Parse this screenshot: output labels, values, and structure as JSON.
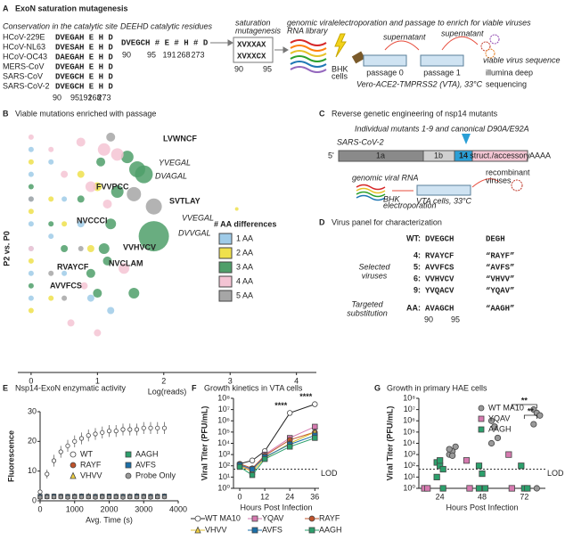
{
  "panel_a": {
    "label": "A",
    "title": "ExoN saturation mutagenesis",
    "conservation_title": "Conservation in the catalytic site",
    "strains": [
      {
        "name": "HCoV-229E",
        "sequence": "DVEGAH E H D"
      },
      {
        "name": "HCoV-NL63",
        "sequence": "DVESAH E H D"
      },
      {
        "name": "HCoV-OC43",
        "sequence": "DAEGAH E H D"
      },
      {
        "name": "MERS-CoV",
        "sequence": "DVEGAH E H D"
      },
      {
        "name": "SARS-CoV",
        "sequence": "DVEGCH E H D"
      },
      {
        "name": "SARS-CoV-2",
        "sequence": "DVEGCH E H D"
      }
    ],
    "positions": [
      "90",
      "95",
      "191",
      "268",
      "273"
    ],
    "catalytic_title": "DEEHD catalytic residues",
    "catalytic_sequence": "DVEGCH # E # H # D",
    "mutagenesis_title": [
      "saturation",
      "mutagenesis"
    ],
    "library": [
      "XVXXAX",
      "XVXXCX"
    ],
    "library_positions": [
      "90",
      "95"
    ],
    "rna_title": [
      "genomic viral",
      "RNA library"
    ],
    "passage_title": "electroporation and passage to enrich for viable viruses",
    "cells": [
      "BHK",
      "cells"
    ],
    "supernatant": "supernatant",
    "passages": [
      "passage 0",
      "passage 1"
    ],
    "vta": "Vero-ACE2-TMPRSS2 (VTA), 33°C",
    "viable": "viable virus sequence",
    "sequencing": [
      "illumina deep",
      "sequencing"
    ]
  },
  "panel_c": {
    "label": "C",
    "title": "Reverse genetic engineering of nsp14 mutants",
    "subtitle": "Individual mutants 1-9 and canonical D90A/E92A",
    "genome": "SARS-CoV-2",
    "five_prime": "5'",
    "segments": [
      "1a",
      "1b",
      "14",
      "struct./accessory"
    ],
    "poly_a": "AAAA",
    "rna": "genomic viral RNA",
    "electroporation": [
      "BHK",
      "electroporation"
    ],
    "cells": "VTA cells, 33°C",
    "recombinant": [
      "recombinant",
      "viruses"
    ]
  },
  "panel_d": {
    "label": "D",
    "title": "Virus panel for characterization",
    "rows": [
      [
        "WT:",
        "DVEGCH",
        "DEGH"
      ],
      [
        "4:",
        "RVAYCF",
        "“RAYF”"
      ],
      [
        "5:",
        "AVVFCS",
        "“AVFS”"
      ],
      [
        "6:",
        "VVHVCV",
        "“VHVV”"
      ],
      [
        "9:",
        "YVQACV",
        "“YQAV”"
      ],
      [
        "AA:",
        "AVAGCH",
        "“AAGH”"
      ]
    ],
    "selected": [
      "Selected",
      "viruses"
    ],
    "targeted": [
      "Targeted",
      "substitution"
    ],
    "positions": [
      "90",
      "95"
    ]
  },
  "chart_data": [
    {
      "type": "scatter",
      "panel_label": "B",
      "title": "Viable mutations enriched with passage",
      "x_label": "Log(reads)",
      "y_label": "P2 vs. P0",
      "xlim": [
        -0.2,
        4.3
      ],
      "xticks": [
        0,
        1,
        2,
        3,
        4
      ],
      "ylim": [
        0,
        10
      ],
      "legend_title": "# AA differences",
      "legend": "right",
      "series": [
        {
          "name": "1 AA",
          "color": "#9fcbe8",
          "x": [
            0,
            0,
            0,
            0,
            0,
            0,
            0,
            0.3,
            0.3,
            0.5,
            0.5,
            0.75,
            0.9,
            1.2
          ],
          "values": [
            9,
            8,
            7,
            6,
            5,
            4,
            3,
            8.5,
            5.5,
            7,
            4,
            6,
            3,
            2.5
          ],
          "sizes": [
            3,
            3,
            3,
            3,
            3,
            3,
            3,
            3,
            3,
            3,
            3,
            4,
            4,
            4
          ]
        },
        {
          "name": "2 AA",
          "color": "#efe04c",
          "x": [
            0,
            0,
            0,
            0,
            0.3,
            0.3,
            0.5,
            0.75,
            0.9,
            1.0,
            3.1
          ],
          "values": [
            8.5,
            6.5,
            4.5,
            2.5,
            7,
            3,
            6,
            8,
            5,
            7.5,
            6.6
          ],
          "sizes": [
            3,
            3,
            3,
            3,
            3,
            3,
            3,
            4,
            4,
            5,
            2
          ]
        },
        {
          "name": "3 AA",
          "color": "#4f9f6a",
          "x": [
            0,
            0,
            0.3,
            0.5,
            0.75,
            0.9,
            1.05,
            1.1,
            1.2,
            1.3,
            1.45,
            1.6,
            1.7,
            1.55,
            1.85,
            1.15,
            1.0
          ],
          "values": [
            7.5,
            3.5,
            6,
            5,
            7,
            4,
            8.5,
            5,
            6,
            7.3,
            8.7,
            8.2,
            8.0,
            3.2,
            5.5,
            4.5,
            3.2
          ],
          "sizes": [
            3,
            3,
            3,
            4,
            4,
            5,
            5,
            6,
            6,
            7,
            7,
            9,
            10,
            6,
            17,
            5,
            5
          ]
        },
        {
          "name": "4 AA",
          "color": "#f4c4d4",
          "x": [
            0,
            0,
            0.3,
            0.5,
            0.75,
            0.9,
            1.1,
            1.3,
            1.15,
            1.4,
            0.6,
            0.8,
            1.0
          ],
          "values": [
            9.5,
            5,
            9,
            8,
            9.3,
            7.5,
            9,
            8.8,
            6.8,
            4.2,
            2,
            3.5,
            1.6
          ],
          "sizes": [
            3,
            3,
            3,
            4,
            5,
            6,
            7,
            7,
            5,
            6,
            4,
            4,
            4
          ]
        },
        {
          "name": "5 AA",
          "color": "#a6a6a6",
          "x": [
            0,
            0.3,
            0.5,
            0.75,
            1.2,
            1.55,
            1.85
          ],
          "values": [
            7,
            4,
            3,
            5,
            9.5,
            7.2,
            6.7
          ],
          "sizes": [
            3,
            3,
            3,
            3,
            5,
            8,
            9
          ]
        }
      ],
      "annotations": [
        {
          "text": "LVWNCF",
          "style": "bold"
        },
        {
          "text": "YVEGAL",
          "style": "italic"
        },
        {
          "text": "DVAGAL",
          "style": "italic"
        },
        {
          "text": "FVVPCC",
          "style": "bold"
        },
        {
          "text": "SVTLAY",
          "style": "bold"
        },
        {
          "text": "NVCCCI",
          "style": "bold"
        },
        {
          "text": "VVEGAL",
          "style": "italic"
        },
        {
          "text": "DVVGAL",
          "style": "italic"
        },
        {
          "text": "VVHVCV",
          "style": "bold"
        },
        {
          "text": "NVCLAM",
          "style": "bold"
        },
        {
          "text": "RVAYCF",
          "style": "bold"
        },
        {
          "text": "AVVFCS",
          "style": "bold"
        }
      ]
    },
    {
      "type": "line",
      "panel_label": "E",
      "title": "Nsp14-ExoN enzymatic activity",
      "x_label": "Avg. Time (s)",
      "y_label": "Fluorescence",
      "xlim": [
        0,
        4000
      ],
      "xticks": [
        0,
        1000,
        2000,
        3000,
        4000
      ],
      "ylim": [
        0,
        30
      ],
      "yticks": [
        0,
        10,
        20,
        30
      ],
      "lines": false,
      "legend": "lower right",
      "x": [
        0,
        200,
        400,
        600,
        800,
        1000,
        1200,
        1400,
        1600,
        1800,
        2000,
        2200,
        2400,
        2600,
        2800,
        3000,
        3200,
        3400,
        3600
      ],
      "series": [
        {
          "name": "WT",
          "color": "#ffffff",
          "marker": "circle",
          "values": [
            3,
            9,
            13.5,
            16.5,
            18.5,
            20,
            21,
            22,
            22.5,
            23,
            23.5,
            23.5,
            24,
            24,
            24,
            24.5,
            24.5,
            24.5,
            24.5
          ],
          "errors": [
            1,
            1.5,
            2,
            2,
            2,
            2,
            2,
            2,
            2,
            2,
            2,
            2,
            2,
            2,
            2,
            2,
            2,
            2,
            2
          ]
        },
        {
          "name": "RAYF",
          "color": "#c0532a",
          "marker": "circle",
          "values": [
            1.5,
            1.6,
            1.5,
            1.4,
            1.5,
            1.6,
            1.5,
            1.5,
            1.4,
            1.5,
            1.6,
            1.5,
            1.5,
            1.4,
            1.5,
            1.5,
            1.6,
            1.5,
            1.5
          ]
        },
        {
          "name": "VHVV",
          "color": "#f0d040",
          "marker": "triangle",
          "values": [
            1.4,
            1.5,
            1.5,
            1.5,
            1.4,
            1.5,
            1.5,
            1.6,
            1.5,
            1.5,
            1.4,
            1.5,
            1.5,
            1.5,
            1.6,
            1.5,
            1.4,
            1.5,
            1.5
          ]
        },
        {
          "name": "AAGH",
          "color": "#2ca06c",
          "marker": "square",
          "values": [
            1.3,
            1.4,
            1.4,
            1.5,
            1.4,
            1.4,
            1.5,
            1.4,
            1.4,
            1.5,
            1.4,
            1.4,
            1.5,
            1.4,
            1.4,
            1.5,
            1.4,
            1.4,
            1.5
          ]
        },
        {
          "name": "AVFS",
          "color": "#1b6fa8",
          "marker": "square",
          "values": [
            1.5,
            1.5,
            1.6,
            1.5,
            1.5,
            1.5,
            1.6,
            1.5,
            1.5,
            1.5,
            1.6,
            1.5,
            1.5,
            1.5,
            1.6,
            1.5,
            1.5,
            1.5,
            1.6
          ]
        },
        {
          "name": "Probe Only",
          "color": "#9a9a9a",
          "marker": "circle",
          "values": [
            1.2,
            1.3,
            1.3,
            1.3,
            1.2,
            1.3,
            1.3,
            1.3,
            1.2,
            1.3,
            1.3,
            1.3,
            1.2,
            1.3,
            1.3,
            1.3,
            1.2,
            1.3,
            1.3
          ]
        }
      ]
    },
    {
      "type": "line",
      "panel_label": "F",
      "title": "Growth kinetics in VTA cells",
      "x_label": "Hours Post Infection",
      "y_label": "Viral Titer (PFU/mL)",
      "xlim": [
        -3,
        38
      ],
      "xticks": [
        0,
        12,
        24,
        36
      ],
      "ylim": [
        1,
        100000000
      ],
      "log_y": true,
      "lines": true,
      "legend": "bottom",
      "yticks": [
        {
          "value": 1,
          "label": "10⁰"
        },
        {
          "value": 10,
          "label": "10¹"
        },
        {
          "value": 100,
          "label": "10²"
        },
        {
          "value": 1000,
          "label": "10³"
        },
        {
          "value": 10000,
          "label": "10⁴"
        },
        {
          "value": 100000,
          "label": "10⁵"
        },
        {
          "value": 1000000,
          "label": "10⁶"
        },
        {
          "value": 10000000,
          "label": "10⁷"
        },
        {
          "value": 100000000,
          "label": "10⁸"
        }
      ],
      "lod": 50,
      "lod_label": "LOD",
      "annotations": [
        "****",
        "****"
      ],
      "x": [
        0,
        6,
        12,
        24,
        36
      ],
      "series": [
        {
          "name": "WT MA10",
          "color": "#ffffff",
          "line_color": "#222222",
          "marker": "circle",
          "values": [
            150,
            300,
            2000,
            5000000,
            30000000
          ]
        },
        {
          "name": "YQAV",
          "color": "#d67ab0",
          "line_color": "#d67ab0",
          "marker": "square",
          "values": [
            100,
            40,
            1000,
            30000,
            300000
          ]
        },
        {
          "name": "RAYF",
          "color": "#c0532a",
          "line_color": "#c0532a",
          "marker": "circle",
          "values": [
            150,
            60,
            800,
            20000,
            100000
          ]
        },
        {
          "name": "VHVV",
          "color": "#f0d040",
          "line_color": "#e0c030",
          "marker": "triangle",
          "values": [
            100,
            30,
            500,
            10000,
            100000
          ]
        },
        {
          "name": "AVFS",
          "color": "#1b6fa8",
          "line_color": "#1b6fa8",
          "marker": "square",
          "values": [
            120,
            50,
            600,
            8000,
            50000
          ]
        },
        {
          "name": "AAGH",
          "color": "#2ca06c",
          "line_color": "#2ca06c",
          "marker": "square",
          "values": [
            80,
            15,
            400,
            5000,
            30000
          ]
        }
      ]
    },
    {
      "type": "strip",
      "panel_label": "G",
      "title": "Growth in primary HAE cells",
      "x_label": "Hours Post Infection",
      "y_label": "Viral Titer (PFU/mL)",
      "categories": [
        "24",
        "48",
        "72"
      ],
      "ylim": [
        1,
        100000000
      ],
      "log_y": true,
      "legend": "upper right",
      "yticks": [
        {
          "value": 1,
          "label": "10⁰"
        },
        {
          "value": 10,
          "label": "10¹"
        },
        {
          "value": 100,
          "label": "10²"
        },
        {
          "value": 1000,
          "label": "10³"
        },
        {
          "value": 10000,
          "label": "10⁴"
        },
        {
          "value": 100000,
          "label": "10⁵"
        },
        {
          "value": 1000000,
          "label": "10⁶"
        },
        {
          "value": 10000000,
          "label": "10⁷"
        },
        {
          "value": 100000000,
          "label": "10⁸"
        }
      ],
      "lod": 50,
      "lod_label": "LOD",
      "annotations": [
        "**",
        "**"
      ],
      "series": [
        {
          "name": "WT MA10",
          "color": "#9a9a9a",
          "marker": "circle",
          "values": [
            [
              1000,
              2000,
              5000,
              3000,
              800
            ],
            [
              1000000,
              300000,
              30000,
              10000,
              300000
            ],
            [
              10000000,
              5000000,
              3000000,
              500000,
              1
            ]
          ]
        },
        {
          "name": "YQAV",
          "color": "#d67ab0",
          "marker": "square",
          "values": [
            [
              1,
              1
            ],
            [
              300,
              1
            ],
            [
              1000,
              1
            ]
          ]
        },
        {
          "name": "AAGH",
          "color": "#2ca06c",
          "marker": "square",
          "values": [
            [
              200,
              100,
              50,
              10,
              300,
              1
            ],
            [
              100,
              20,
              1,
              1
            ],
            [
              100,
              1,
              1
            ]
          ]
        }
      ]
    }
  ]
}
